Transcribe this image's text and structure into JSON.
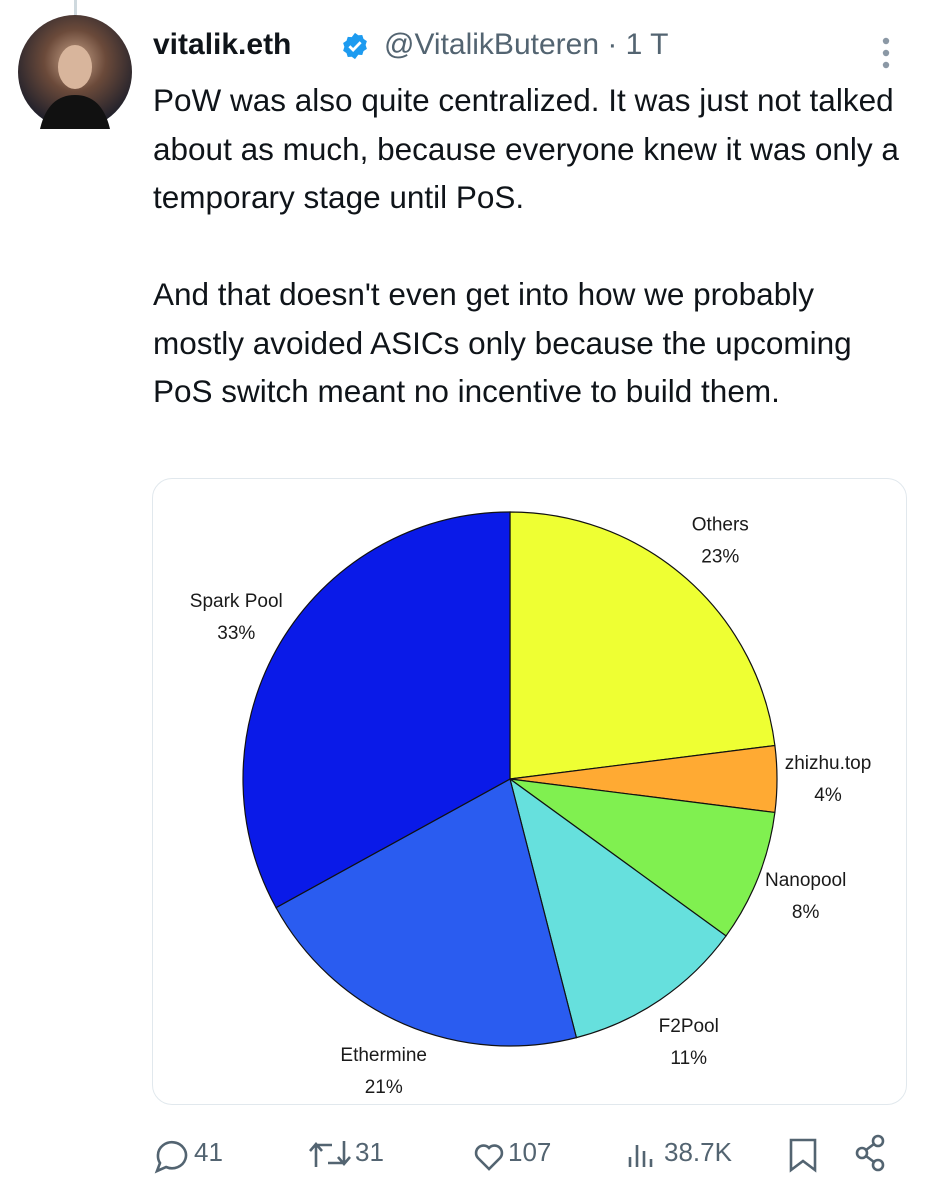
{
  "tweet": {
    "author": "vitalik.eth",
    "handle": "@VitalikButeren · 1 T",
    "paragraphs": [
      "PoW was also quite centralized. It was just not talked about as much, because everyone knew it was only a temporary stage until PoS.",
      "And that doesn't even get into how we probably mostly avoided ASICs only because the upcoming PoS switch meant no incentive to build them."
    ],
    "actions": {
      "replies": "41",
      "reposts": "31",
      "likes": "107",
      "views": "38.7K"
    }
  },
  "chart_data": {
    "type": "pie",
    "categories": [
      "Others",
      "zhizhu.top",
      "Nanopool",
      "F2Pool",
      "Ethermine",
      "Spark Pool"
    ],
    "values": [
      23,
      4,
      8,
      11,
      21,
      33
    ],
    "value_labels": [
      "23%",
      "4%",
      "8%",
      "11%",
      "21%",
      "33%"
    ],
    "colors": [
      "#eeff33",
      "#ffaa33",
      "#80f050",
      "#66e0dd",
      "#2a5cf0",
      "#0a1ae8"
    ]
  }
}
